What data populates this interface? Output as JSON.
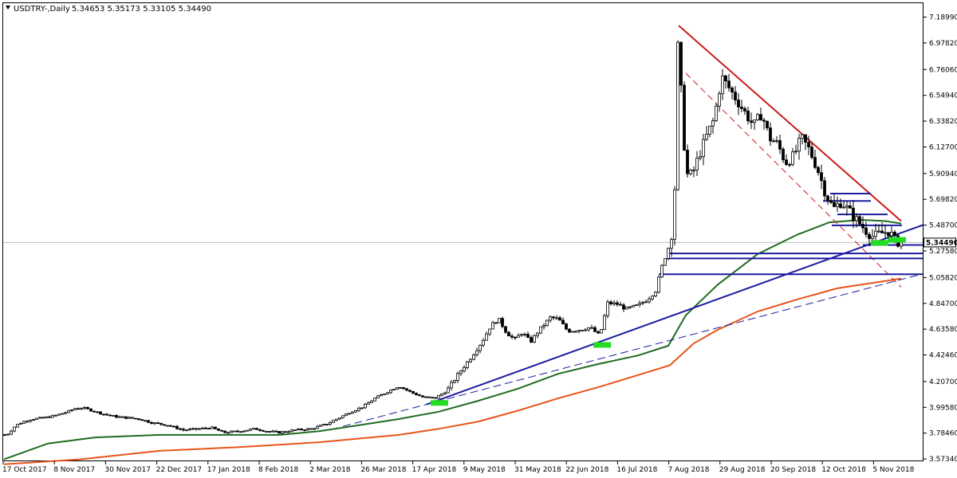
{
  "window": {
    "symbol_title": "USDTRY-,Daily",
    "ohlc": "5.34653 5.35173 5.33105 5.34490"
  },
  "colors": {
    "background": "#ffffff",
    "bull_candle": "#ffffff",
    "bear_candle": "#000000",
    "ma_green": "#1f6b1f",
    "ma_orange": "#e8541a",
    "trend_blue": "#1c1ca0",
    "resistance_red": "#cc1a1a",
    "highlight_green": "#22dd22",
    "current_line": "#c0c0c0"
  },
  "chart_data": {
    "type": "candlestick",
    "title": "USDTRY-,Daily",
    "ylim": [
      3.5674,
      7.2189
    ],
    "y_ticks": [
      "7.18990",
      "6.97820",
      "6.76060",
      "6.54940",
      "6.33820",
      "6.12700",
      "5.90940",
      "5.69820",
      "5.48700",
      "5.27580",
      "5.05820",
      "4.84700",
      "4.63580",
      "4.42460",
      "4.20700",
      "3.99580",
      "3.78460",
      "3.57340"
    ],
    "x_ticks": [
      "17 Oct 2017",
      "8 Nov 2017",
      "30 Nov 2017",
      "22 Dec 2017",
      "17 Jan 2018",
      "8 Feb 2018",
      "2 Mar 2018",
      "26 Mar 2018",
      "17 Apr 2018",
      "9 May 2018",
      "31 May 2018",
      "22 Jun 2018",
      "16 Jul 2018",
      "7 Aug 2018",
      "29 Aug 2018",
      "20 Sep 2018",
      "12 Oct 2018",
      "5 Nov 2018"
    ],
    "current_price": "5.34490",
    "current_value": 5.3449,
    "price_path": [
      [
        0,
        3.76
      ],
      [
        10,
        3.78
      ],
      [
        20,
        3.85
      ],
      [
        30,
        3.88
      ],
      [
        40,
        3.9
      ],
      [
        55,
        3.91
      ],
      [
        70,
        3.93
      ],
      [
        85,
        3.96
      ],
      [
        95,
        3.99
      ],
      [
        105,
        3.99
      ],
      [
        115,
        3.97
      ],
      [
        130,
        3.94
      ],
      [
        145,
        3.92
      ],
      [
        160,
        3.91
      ],
      [
        175,
        3.9
      ],
      [
        190,
        3.87
      ],
      [
        210,
        3.85
      ],
      [
        230,
        3.81
      ],
      [
        250,
        3.82
      ],
      [
        265,
        3.83
      ],
      [
        280,
        3.79
      ],
      [
        300,
        3.8
      ],
      [
        320,
        3.82
      ],
      [
        335,
        3.8
      ],
      [
        350,
        3.79
      ],
      [
        370,
        3.81
      ],
      [
        390,
        3.82
      ],
      [
        410,
        3.86
      ],
      [
        425,
        3.91
      ],
      [
        440,
        3.96
      ],
      [
        455,
        4.0
      ],
      [
        470,
        4.07
      ],
      [
        485,
        4.12
      ],
      [
        500,
        4.17
      ],
      [
        515,
        4.12
      ],
      [
        530,
        4.08
      ],
      [
        545,
        4.07
      ],
      [
        560,
        4.13
      ],
      [
        575,
        4.27
      ],
      [
        590,
        4.4
      ],
      [
        605,
        4.54
      ],
      [
        615,
        4.66
      ],
      [
        625,
        4.72
      ],
      [
        635,
        4.61
      ],
      [
        645,
        4.55
      ],
      [
        655,
        4.61
      ],
      [
        665,
        4.53
      ],
      [
        675,
        4.62
      ],
      [
        690,
        4.73
      ],
      [
        700,
        4.72
      ],
      [
        712,
        4.62
      ],
      [
        725,
        4.63
      ],
      [
        740,
        4.65
      ],
      [
        752,
        4.58
      ],
      [
        762,
        4.85
      ],
      [
        775,
        4.84
      ],
      [
        785,
        4.8
      ],
      [
        800,
        4.83
      ],
      [
        812,
        4.88
      ],
      [
        822,
        4.95
      ],
      [
        830,
        5.15
      ],
      [
        838,
        5.3
      ],
      [
        845,
        5.5
      ],
      [
        850,
        6.95
      ],
      [
        855,
        6.5
      ],
      [
        860,
        5.9
      ],
      [
        868,
        5.9
      ],
      [
        876,
        6.05
      ],
      [
        885,
        6.2
      ],
      [
        895,
        6.35
      ],
      [
        905,
        6.7
      ],
      [
        915,
        6.6
      ],
      [
        925,
        6.5
      ],
      [
        935,
        6.4
      ],
      [
        945,
        6.3
      ],
      [
        955,
        6.4
      ],
      [
        965,
        6.2
      ],
      [
        975,
        6.15
      ],
      [
        985,
        6.0
      ],
      [
        995,
        6.05
      ],
      [
        1005,
        6.2
      ],
      [
        1015,
        6.1
      ],
      [
        1025,
        5.95
      ],
      [
        1035,
        5.75
      ],
      [
        1045,
        5.62
      ],
      [
        1055,
        5.68
      ],
      [
        1065,
        5.6
      ],
      [
        1075,
        5.52
      ],
      [
        1085,
        5.45
      ],
      [
        1095,
        5.39
      ],
      [
        1105,
        5.42
      ],
      [
        1115,
        5.44
      ],
      [
        1122,
        5.36
      ],
      [
        1130,
        5.345
      ]
    ],
    "ma_green": [
      [
        5,
        3.57
      ],
      [
        60,
        3.7
      ],
      [
        120,
        3.75
      ],
      [
        200,
        3.77
      ],
      [
        300,
        3.77
      ],
      [
        350,
        3.77
      ],
      [
        400,
        3.8
      ],
      [
        450,
        3.85
      ],
      [
        500,
        3.9
      ],
      [
        550,
        3.96
      ],
      [
        600,
        4.05
      ],
      [
        650,
        4.15
      ],
      [
        700,
        4.27
      ],
      [
        750,
        4.35
      ],
      [
        800,
        4.42
      ],
      [
        838,
        4.5
      ],
      [
        860,
        4.75
      ],
      [
        900,
        5.0
      ],
      [
        950,
        5.25
      ],
      [
        1000,
        5.41
      ],
      [
        1040,
        5.51
      ],
      [
        1080,
        5.53
      ],
      [
        1110,
        5.52
      ],
      [
        1130,
        5.5
      ]
    ],
    "ma_orange": [
      [
        5,
        3.53
      ],
      [
        100,
        3.57
      ],
      [
        200,
        3.64
      ],
      [
        300,
        3.67
      ],
      [
        400,
        3.71
      ],
      [
        500,
        3.77
      ],
      [
        550,
        3.82
      ],
      [
        600,
        3.88
      ],
      [
        650,
        3.97
      ],
      [
        700,
        4.07
      ],
      [
        750,
        4.16
      ],
      [
        800,
        4.26
      ],
      [
        840,
        4.34
      ],
      [
        870,
        4.52
      ],
      [
        900,
        4.63
      ],
      [
        950,
        4.78
      ],
      [
        1000,
        4.88
      ],
      [
        1050,
        4.97
      ],
      [
        1100,
        5.02
      ],
      [
        1130,
        5.05
      ]
    ],
    "blue_trendline": [
      [
        535,
        4.02
      ],
      [
        1158,
        5.49
      ]
    ],
    "blue_dashed_trendline": [
      [
        430,
        3.84
      ],
      [
        1158,
        5.09
      ]
    ],
    "red_resistance": [
      [
        851,
        7.12
      ],
      [
        1130,
        5.52
      ]
    ],
    "red_dashed_channel": [
      [
        860,
        6.73
      ],
      [
        1130,
        4.98
      ]
    ],
    "horizontal_levels": [
      {
        "value": 5.685,
        "x": [
          1032,
          1092
        ]
      },
      {
        "value": 5.745,
        "x": [
          1041,
          1092
        ]
      },
      {
        "value": 5.575,
        "x": [
          1050,
          1113
        ]
      },
      {
        "value": 5.485,
        "x": [
          1043,
          1131
        ]
      },
      {
        "value": 5.325,
        "x": [
          1082,
          1158
        ]
      },
      {
        "value": 5.255,
        "x": [
          836,
          1158
        ]
      },
      {
        "value": 5.215,
        "x": [
          836,
          1158
        ]
      },
      {
        "value": 5.085,
        "x": [
          826,
          1158
        ]
      }
    ],
    "highlight_boxes": [
      [
        540,
        4.035
      ],
      [
        744,
        4.51
      ],
      [
        1092,
        5.345
      ],
      [
        1114,
        5.37
      ]
    ]
  }
}
